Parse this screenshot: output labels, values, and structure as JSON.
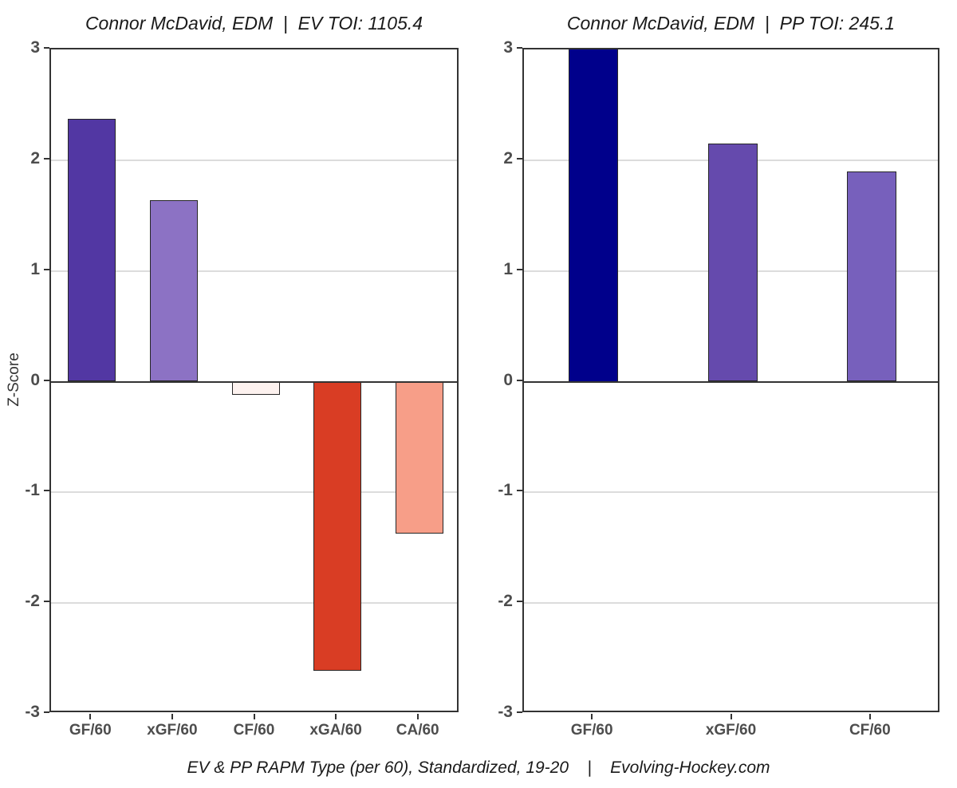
{
  "caption": "EV & PP RAPM Type (per 60), Standardized, 19-20    |    Evolving-Hockey.com",
  "colors": {
    "axis": "#333333",
    "gridline": "#dcdcdc",
    "bar_outline": "#262626",
    "tick_text": "#4d4d4d",
    "title_text": "#1a1a1a"
  },
  "chart_data": [
    {
      "type": "bar",
      "title": "Connor McDavid, EDM  |  EV TOI: 1105.4",
      "player": "Connor McDavid",
      "team": "EDM",
      "strength": "EV",
      "toi": 1105.4,
      "categories": [
        "GF/60",
        "xGF/60",
        "CF/60",
        "xGA/60",
        "CA/60"
      ],
      "values": [
        2.37,
        1.64,
        -0.12,
        -2.61,
        -1.37
      ],
      "clipped": [
        false,
        false,
        false,
        false,
        false
      ],
      "bar_colors": [
        "#5237a3",
        "#8c72c4",
        "#fdf2ef",
        "#d93d24",
        "#f79e88"
      ],
      "xlabel": "",
      "ylabel": "Z-Score",
      "ylim": [
        -3,
        3
      ],
      "yticks": [
        3,
        2,
        1,
        0,
        -1,
        -2,
        -3
      ],
      "grid": true,
      "legend": "none"
    },
    {
      "type": "bar",
      "title": "Connor McDavid, EDM  |  PP TOI: 245.1",
      "player": "Connor McDavid",
      "team": "EDM",
      "strength": "PP",
      "toi": 245.1,
      "categories": [
        "GF/60",
        "xGF/60",
        "CF/60"
      ],
      "values": [
        3.0,
        2.15,
        1.9
      ],
      "clipped": [
        true,
        false,
        false
      ],
      "bar_colors": [
        "#00008b",
        "#654aad",
        "#7760bc"
      ],
      "xlabel": "",
      "ylabel": "",
      "ylim": [
        -3,
        3
      ],
      "yticks": [
        3,
        2,
        1,
        0,
        -1,
        -2,
        -3
      ],
      "grid": true,
      "legend": "none"
    }
  ]
}
